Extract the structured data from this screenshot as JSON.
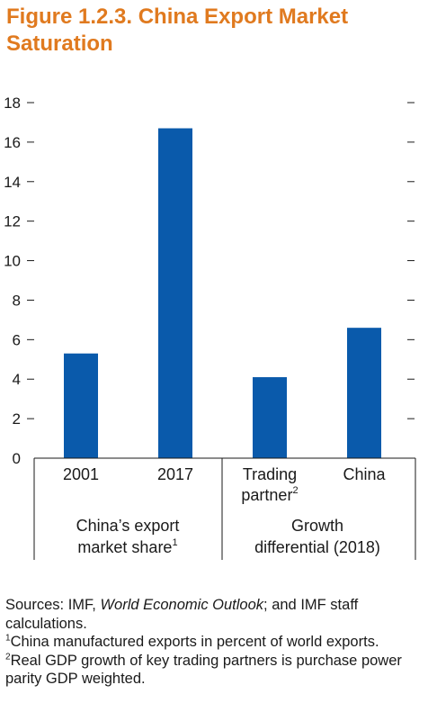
{
  "figure": {
    "title": "Figure 1.2.3. China Export Market Saturation"
  },
  "chart_data": {
    "type": "bar",
    "categories": [
      "2001",
      "2017",
      "Trading partner",
      "China"
    ],
    "category_labels": [
      {
        "lines": [
          "2001"
        ]
      },
      {
        "lines": [
          "2017"
        ]
      },
      {
        "lines": [
          "Trading",
          "partner"
        ],
        "sup": "2"
      },
      {
        "lines": [
          "China"
        ]
      }
    ],
    "groups": [
      {
        "lines": [
          "China’s export",
          "market share"
        ],
        "sup": "1",
        "categories": [
          "2001",
          "2017"
        ]
      },
      {
        "lines": [
          "Growth",
          "differential (2018)"
        ],
        "categories": [
          "Trading partner",
          "China"
        ]
      }
    ],
    "values": [
      5.3,
      16.7,
      4.1,
      6.6
    ],
    "ylim": [
      0,
      18
    ],
    "yticks": [
      0,
      2,
      4,
      6,
      8,
      10,
      12,
      14,
      16,
      18
    ],
    "grid": false,
    "bar_color": "#0a5aab",
    "title": "Figure 1.2.3. China Export Market Saturation",
    "xlabel": "",
    "ylabel": ""
  },
  "notes": {
    "sources_prefix": "Sources: IMF, ",
    "sources_italic": "World Economic Outlook",
    "sources_suffix": "; and IMF staff calculations.",
    "note1_marker": "1",
    "note1_text": "China manufactured exports in percent of world exports.",
    "note2_marker": "2",
    "note2_text": "Real GDP growth of key trading partners is purchase power parity GDP weighted."
  },
  "colors": {
    "title": "#e07a1f",
    "bar": "#0a5aab",
    "text": "#1a1a1a"
  }
}
